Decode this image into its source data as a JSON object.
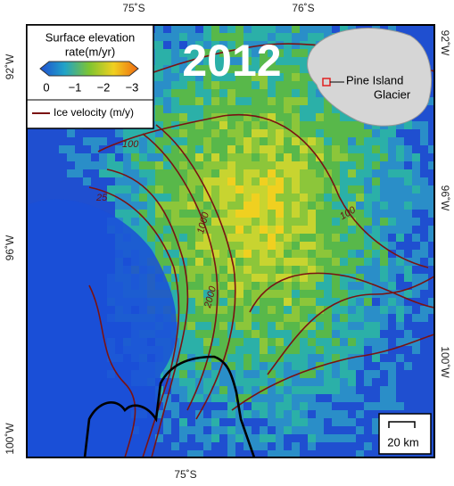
{
  "map": {
    "year": "2012",
    "top_labels": [
      "75˚S",
      "76˚S"
    ],
    "bottom_labels": [
      "75˚S"
    ],
    "left_labels": [
      "92˚W",
      "96˚W",
      "100˚W"
    ],
    "right_labels": [
      "92˚W",
      "96˚W",
      "100˚W"
    ],
    "legend": {
      "title_line1": "Surface elevation",
      "title_line2": "rate(m/yr)",
      "colorbar_labels": [
        "0",
        "−1",
        "−2",
        "−3"
      ],
      "line_label": "Ice velocity (m/y)"
    },
    "contour_labels": [
      "100",
      "25",
      "1000",
      "2000",
      "100"
    ],
    "inset": {
      "line1": "Pine Island",
      "line2": "Glacier"
    },
    "scale_bar": "20 km"
  }
}
